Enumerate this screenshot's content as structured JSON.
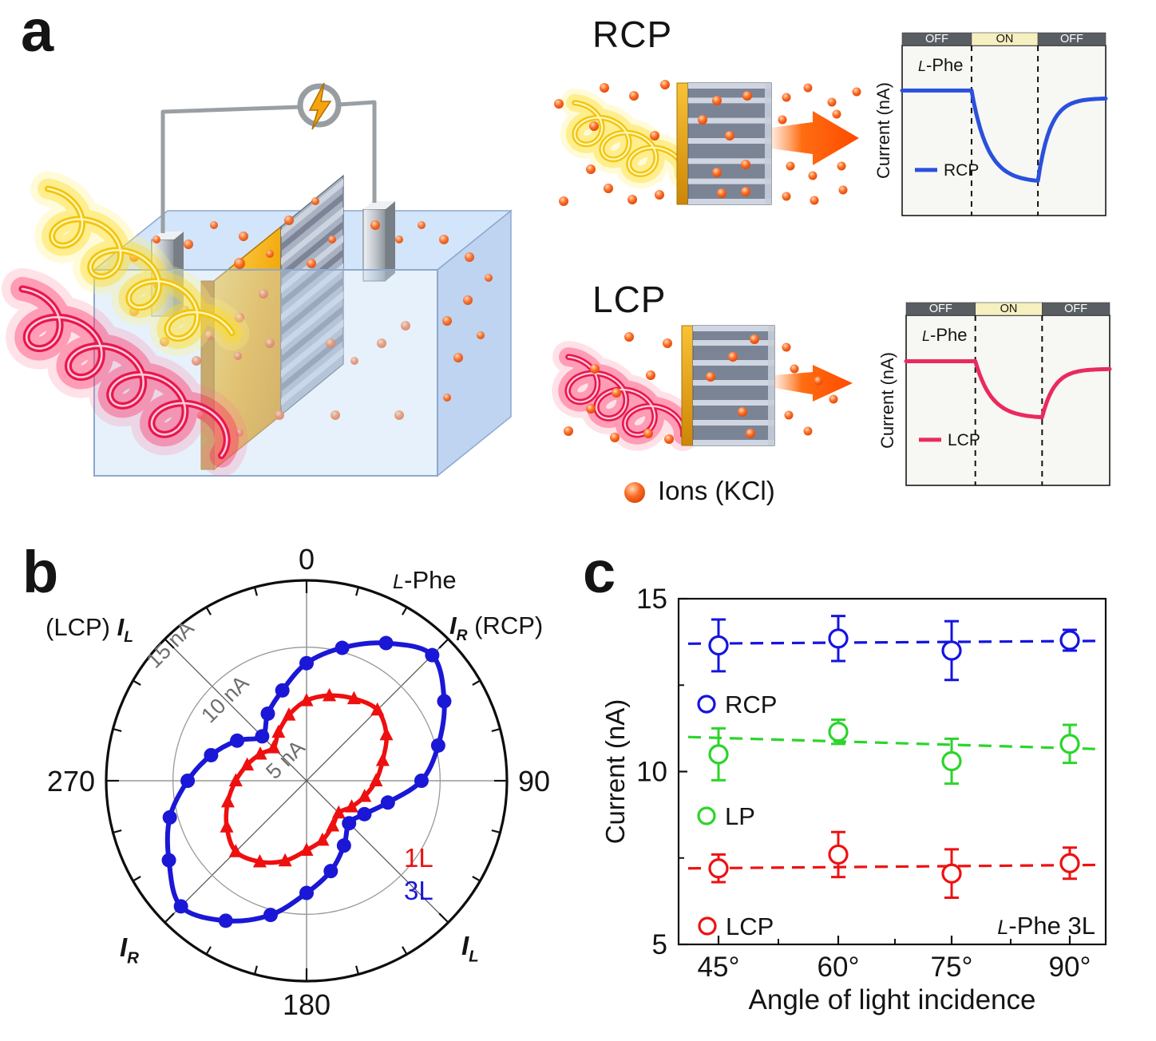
{
  "panels": {
    "a": "a",
    "b": "b",
    "c": "c"
  },
  "panel_a": {
    "rcp_schematic_title": "RCP",
    "lcp_schematic_title": "LCP",
    "ions_legend_label": "Ions (KCl)"
  },
  "colors": {
    "rcp_blue": "#2a50dd",
    "lcp_pink": "#ea2a5e",
    "polar_blue": "#1a17d6",
    "polar_red": "#ee0f0f",
    "scatter_blue": "#1414e0",
    "scatter_green": "#2bd52b",
    "scatter_red": "#ee1111",
    "ion_orange": "#ff5a1a",
    "gold": "#f0a80e",
    "on_yellow": "#f6efbf",
    "off_gray": "#595e62"
  },
  "chart_data": [
    {
      "id": "rcp_photogating",
      "type": "line",
      "state_segments": [
        "OFF",
        "ON",
        "OFF"
      ],
      "sample_label": "L-Phe",
      "ylabel": "Current (nA)",
      "legend": "RCP",
      "color_key": "rcp_blue",
      "on_window_frac": [
        0.341,
        0.667
      ],
      "baseline_frac": 0.265,
      "dip_frac": 0.805,
      "description": "Ionic current drops while RCP light is ON and recovers when OFF"
    },
    {
      "id": "lcp_photogating",
      "type": "line",
      "state_segments": [
        "OFF",
        "ON",
        "OFF"
      ],
      "sample_label": "L-Phe",
      "ylabel": "Current (nA)",
      "legend": "LCP",
      "color_key": "lcp_pink",
      "on_window_frac": [
        0.34,
        0.668
      ],
      "baseline_frac": 0.27,
      "dip_frac": 0.605,
      "description": "Smaller current drop under LCP light"
    },
    {
      "id": "polar_current",
      "type": "line",
      "subtype": "polar",
      "sample_label": "L-Phe",
      "r_unit": "nA",
      "r_max": 15,
      "r_ring_values": [
        10,
        15
      ],
      "r_tick_labels": [
        {
          "text": "5 nA",
          "value": 5
        },
        {
          "text": "10 nA",
          "value": 10
        },
        {
          "text": "15 nA",
          "value": 15
        }
      ],
      "angle_labels": [
        "0",
        "90",
        "180",
        "270"
      ],
      "angle_tick_step_deg": 15,
      "axis_annotations": {
        "top_left": {
          "pre": "(LCP) ",
          "sym": "I",
          "sub": "L",
          "post": ""
        },
        "top_right": {
          "pre": "",
          "sym": "I",
          "sub": "R",
          "post": " (RCP)"
        },
        "bottom_left": {
          "pre": "",
          "sym": "I",
          "sub": "R",
          "post": ""
        },
        "bottom_right": {
          "pre": "",
          "sym": "I",
          "sub": "L",
          "post": ""
        }
      },
      "series": [
        {
          "name": "1L",
          "marker": "triangle",
          "color_key": "polar_red",
          "points": [
            [
              0,
              6.0
            ],
            [
              15,
              6.6
            ],
            [
              30,
              7.1
            ],
            [
              45,
              7.5
            ],
            [
              60,
              6.9
            ],
            [
              75,
              5.9
            ],
            [
              90,
              5.2
            ],
            [
              105,
              4.5
            ],
            [
              120,
              3.9
            ],
            [
              135,
              3.4
            ],
            [
              150,
              3.9
            ],
            [
              165,
              4.6
            ],
            [
              180,
              5.2
            ],
            [
              195,
              6.2
            ],
            [
              210,
              7.0
            ],
            [
              225,
              7.5
            ],
            [
              240,
              6.9
            ],
            [
              255,
              6.1
            ],
            [
              270,
              5.3
            ],
            [
              285,
              4.6
            ],
            [
              300,
              4.0
            ],
            [
              315,
              3.5
            ],
            [
              330,
              4.2
            ],
            [
              345,
              5.1
            ]
          ]
        },
        {
          "name": "3L",
          "marker": "circle",
          "color_key": "polar_blue",
          "points": [
            [
              0,
              8.8
            ],
            [
              15,
              10.3
            ],
            [
              30,
              11.9
            ],
            [
              45,
              13.3
            ],
            [
              60,
              11.9
            ],
            [
              75,
              10.2
            ],
            [
              90,
              8.6
            ],
            [
              105,
              6.3
            ],
            [
              120,
              5.0
            ],
            [
              135,
              4.5
            ],
            [
              150,
              5.6
            ],
            [
              165,
              7.0
            ],
            [
              180,
              8.4
            ],
            [
              195,
              10.4
            ],
            [
              210,
              12.1
            ],
            [
              225,
              13.3
            ],
            [
              240,
              11.9
            ],
            [
              255,
              10.6
            ],
            [
              270,
              8.9
            ],
            [
              285,
              7.4
            ],
            [
              300,
              6.0
            ],
            [
              315,
              4.7
            ],
            [
              330,
              5.8
            ],
            [
              345,
              7.0
            ]
          ]
        }
      ]
    },
    {
      "id": "angle_dependence",
      "type": "scatter",
      "xlabel": "Angle of light incidence",
      "ylabel": "Current (nA)",
      "x_tick_labels": [
        "45°",
        "60°",
        "75°",
        "90°"
      ],
      "x_values_deg": [
        45,
        60,
        75,
        90
      ],
      "ylim": [
        5,
        15
      ],
      "y_ticks": [
        5,
        10,
        15
      ],
      "annotation": "L-Phe 3L",
      "legend_position": "inside-left",
      "series": [
        {
          "name": "RCP",
          "color_key": "scatter_blue",
          "values": [
            13.65,
            13.85,
            13.5,
            13.8
          ],
          "errors": [
            0.75,
            0.65,
            0.85,
            0.3
          ],
          "trend": [
            13.7,
            13.78
          ]
        },
        {
          "name": "LP",
          "color_key": "scatter_green",
          "values": [
            10.5,
            11.15,
            10.3,
            10.8
          ],
          "errors": [
            0.75,
            0.35,
            0.65,
            0.55
          ],
          "trend": [
            11.0,
            10.65
          ]
        },
        {
          "name": "LCP",
          "color_key": "scatter_red",
          "values": [
            7.2,
            7.6,
            7.05,
            7.35
          ],
          "errors": [
            0.4,
            0.65,
            0.7,
            0.45
          ],
          "trend": [
            7.2,
            7.3
          ]
        }
      ]
    }
  ]
}
